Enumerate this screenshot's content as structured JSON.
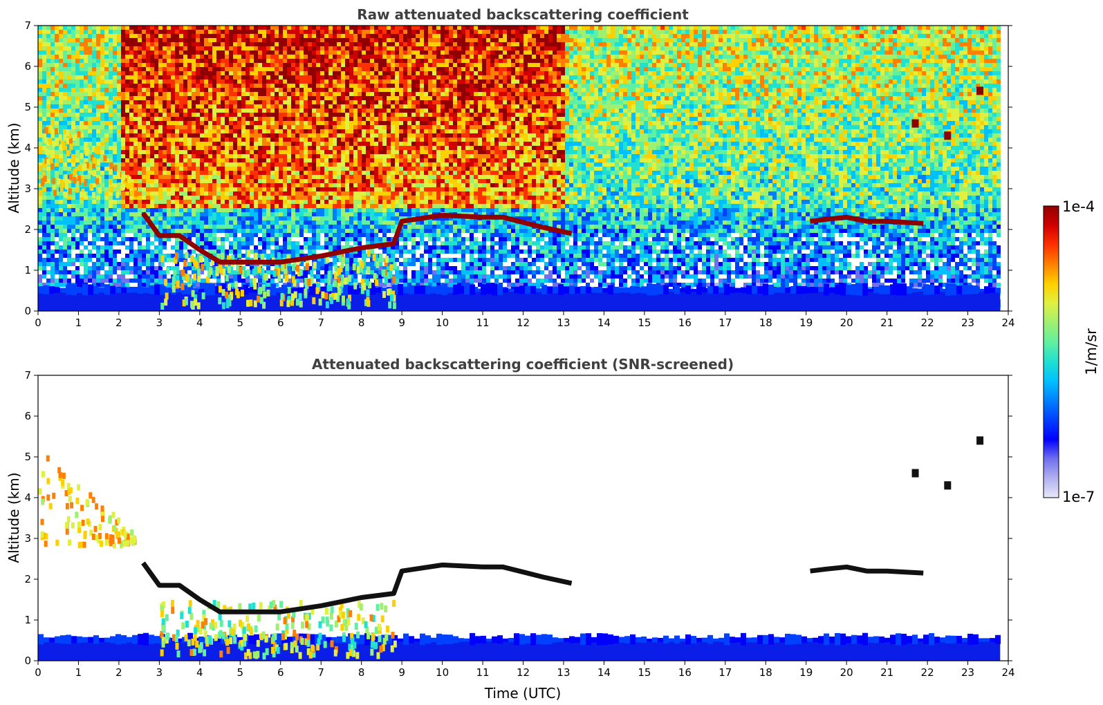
{
  "chart_data": [
    {
      "type": "heatmap",
      "title": "Raw attenuated backscattering coefficient",
      "xlabel": "",
      "ylabel": "Altitude (km)",
      "xlim": [
        0,
        24
      ],
      "ylim": [
        0,
        7
      ],
      "x_ticks": [
        "0",
        "1",
        "2",
        "3",
        "4",
        "5",
        "6",
        "7",
        "8",
        "9",
        "10",
        "11",
        "12",
        "13",
        "14",
        "15",
        "16",
        "17",
        "18",
        "19",
        "20",
        "21",
        "22",
        "23",
        "24"
      ],
      "y_ticks": [
        "0",
        "1",
        "2",
        "3",
        "4",
        "5",
        "6",
        "7"
      ],
      "data_end_hour": 23.8,
      "features": [
        {
          "name": "boundary layer",
          "x_start": 0,
          "x_end": 23.8,
          "alt_top": 0.5
        },
        {
          "name": "high-altitude noise",
          "x_start": 0,
          "x_end": 23.8,
          "alt_bottom": 2.5,
          "alt_top": 7
        },
        {
          "name": "mid-level cloud",
          "points": [
            [
              2.6,
              2.4
            ],
            [
              3.0,
              1.85
            ],
            [
              3.5,
              1.85
            ],
            [
              4.0,
              1.5
            ],
            [
              4.5,
              1.2
            ],
            [
              6.0,
              1.2
            ],
            [
              7.0,
              1.35
            ],
            [
              8.0,
              1.55
            ],
            [
              8.8,
              1.65
            ],
            [
              9.0,
              2.2
            ],
            [
              10.0,
              2.35
            ],
            [
              11.0,
              2.3
            ],
            [
              11.5,
              2.3
            ],
            [
              12.5,
              2.05
            ],
            [
              13.2,
              1.9
            ]
          ]
        },
        {
          "name": "cloud layer",
          "points": [
            [
              19.1,
              2.2
            ],
            [
              19.5,
              2.25
            ],
            [
              20.0,
              2.3
            ],
            [
              20.5,
              2.2
            ],
            [
              21.0,
              2.2
            ],
            [
              21.9,
              2.15
            ]
          ]
        },
        {
          "name": "isolated cloud",
          "points": [
            [
              21.7,
              4.6
            ],
            [
              22.5,
              4.3
            ],
            [
              23.3,
              5.4
            ]
          ]
        },
        {
          "name": "virga",
          "x_start": 0,
          "x_end": 2.4,
          "alt_bottom": 2.9,
          "alt_top": 5.3
        }
      ]
    },
    {
      "type": "heatmap",
      "title": "Attenuated backscattering coefficient (SNR-screened)",
      "xlabel": "Time (UTC)",
      "ylabel": "Altitude (km)",
      "xlim": [
        0,
        24
      ],
      "ylim": [
        0,
        7
      ],
      "x_ticks": [
        "0",
        "1",
        "2",
        "3",
        "4",
        "5",
        "6",
        "7",
        "8",
        "9",
        "10",
        "11",
        "12",
        "13",
        "14",
        "15",
        "16",
        "17",
        "18",
        "19",
        "20",
        "21",
        "22",
        "23",
        "24"
      ],
      "y_ticks": [
        "0",
        "1",
        "2",
        "3",
        "4",
        "5",
        "6",
        "7"
      ],
      "screened": true
    }
  ],
  "colorbar": {
    "label": "1/m/sr",
    "max_label": "1e-4",
    "min_label": "1e-7",
    "colors": [
      "#e8e8f8",
      "#b0b0f0",
      "#7070f0",
      "#0000ff",
      "#0040ff",
      "#0080ff",
      "#00c0ff",
      "#20e0d0",
      "#60f0a0",
      "#a0f070",
      "#e0f040",
      "#ffd000",
      "#ff8000",
      "#ff3000",
      "#d00000",
      "#900000"
    ]
  }
}
